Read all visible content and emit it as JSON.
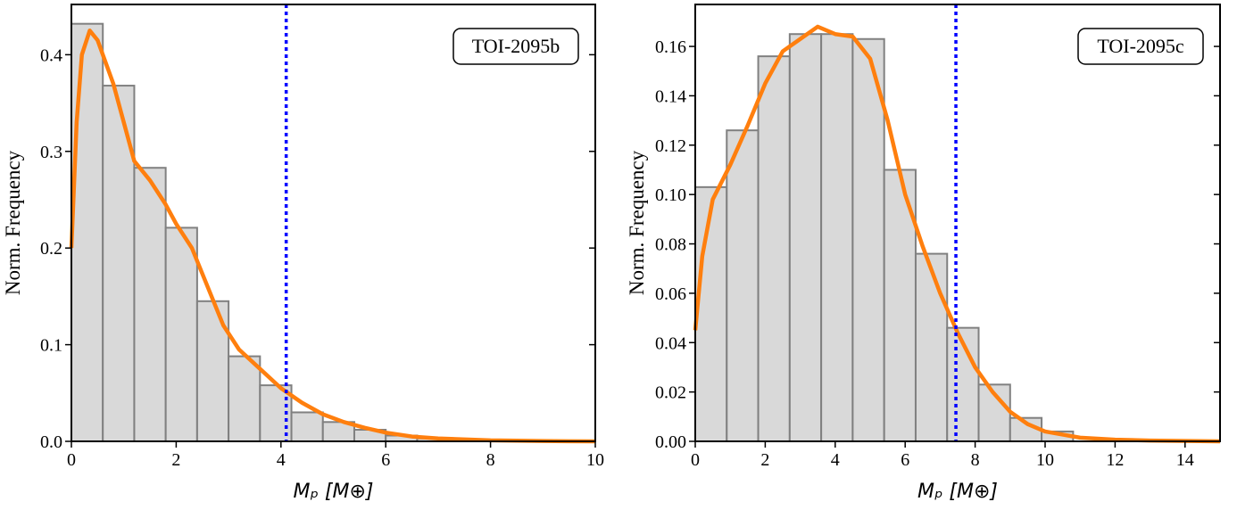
{
  "chart_data": [
    {
      "type": "histogram",
      "label": "TOI-2095b",
      "xlabel": "Mₚ [M⊕]",
      "ylabel": "Norm. Frequency",
      "bins": [
        0,
        0.6,
        1.2,
        1.8,
        2.4,
        3.0,
        3.6,
        4.2,
        4.8,
        5.4,
        6.0,
        6.6,
        7.2,
        7.8
      ],
      "values": [
        0.432,
        0.368,
        0.283,
        0.221,
        0.145,
        0.088,
        0.058,
        0.03,
        0.02,
        0.012,
        0.006,
        0.003,
        0.002
      ],
      "color": "#d9d9d9",
      "edgecolor": "#808080",
      "kde": {
        "x": [
          0,
          0.1,
          0.2,
          0.35,
          0.5,
          0.8,
          1.0,
          1.2,
          1.5,
          1.8,
          2.0,
          2.3,
          2.6,
          2.9,
          3.2,
          3.6,
          4.0,
          4.4,
          4.8,
          5.2,
          5.6,
          6.0,
          6.5,
          7,
          8,
          9,
          10
        ],
        "values": [
          0.2,
          0.33,
          0.4,
          0.425,
          0.415,
          0.37,
          0.33,
          0.29,
          0.27,
          0.245,
          0.225,
          0.2,
          0.16,
          0.12,
          0.095,
          0.075,
          0.055,
          0.04,
          0.028,
          0.02,
          0.014,
          0.009,
          0.005,
          0.003,
          0.001,
          0.0003,
          0
        ],
        "color": "#ff7f0e"
      },
      "vline": {
        "value": 4.1,
        "color": "#0000ff"
      },
      "xlim": [
        0,
        10
      ],
      "ylim": [
        0,
        0.452
      ],
      "xticks": [
        0,
        2,
        4,
        6,
        8,
        10
      ],
      "yticks": [
        {
          "value": 0,
          "label": "0.0"
        },
        0.1,
        0.2,
        0.3,
        0.4
      ]
    },
    {
      "type": "histogram",
      "label": "TOI-2095c",
      "xlabel": "Mₚ [M⊕]",
      "ylabel": "Norm. Frequency",
      "bins": [
        0,
        0.9,
        1.8,
        2.7,
        3.6,
        4.5,
        5.4,
        6.3,
        7.2,
        8.1,
        9.0,
        9.9,
        10.8
      ],
      "values": [
        0.103,
        0.126,
        0.156,
        0.165,
        0.165,
        0.163,
        0.11,
        0.076,
        0.046,
        0.023,
        0.0095,
        0.004
      ],
      "color": "#d9d9d9",
      "edgecolor": "#808080",
      "kde": {
        "x": [
          0,
          0.2,
          0.5,
          1,
          1.5,
          2,
          2.5,
          3,
          3.5,
          4,
          4.5,
          5,
          5.5,
          6,
          6.5,
          7,
          7.5,
          8,
          8.5,
          9,
          9.5,
          10,
          11,
          12,
          13,
          15
        ],
        "values": [
          0.045,
          0.075,
          0.098,
          0.112,
          0.128,
          0.145,
          0.158,
          0.163,
          0.168,
          0.165,
          0.164,
          0.155,
          0.13,
          0.1,
          0.079,
          0.06,
          0.044,
          0.03,
          0.02,
          0.012,
          0.007,
          0.004,
          0.0015,
          0.0007,
          0.0003,
          0
        ],
        "color": "#ff7f0e"
      },
      "vline": {
        "value": 7.45,
        "color": "#0000ff"
      },
      "xlim": [
        0,
        15
      ],
      "ylim": [
        0,
        0.177
      ],
      "xticks": [
        0,
        2,
        4,
        6,
        8,
        10,
        12,
        14
      ],
      "yticks": [
        {
          "value": 0,
          "label": "0.00"
        },
        {
          "value": 0.02,
          "label": "0.02"
        },
        {
          "value": 0.04,
          "label": "0.04"
        },
        {
          "value": 0.06,
          "label": "0.06"
        },
        {
          "value": 0.08,
          "label": "0.08"
        },
        {
          "value": 0.1,
          "label": "0.10"
        },
        {
          "value": 0.12,
          "label": "0.12"
        },
        {
          "value": 0.14,
          "label": "0.14"
        },
        {
          "value": 0.16,
          "label": "0.16"
        }
      ]
    }
  ]
}
